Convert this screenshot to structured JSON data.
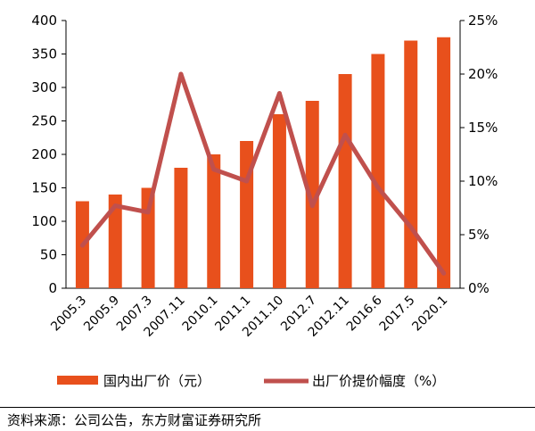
{
  "chart_data": {
    "type": "bar+line",
    "categories": [
      "2005.3",
      "2005.9",
      "2007.3",
      "2007.11",
      "2010.1",
      "2011.1",
      "2011.10",
      "2012.7",
      "2012.11",
      "2016.6",
      "2017.5",
      "2020.1"
    ],
    "series": [
      {
        "name": "国内出厂价（元）",
        "type": "bar",
        "axis": "left",
        "color": "#e8501c",
        "values": [
          130,
          140,
          150,
          180,
          200,
          220,
          260,
          280,
          320,
          350,
          370,
          375
        ]
      },
      {
        "name": "出厂价提价幅度（%）",
        "type": "line",
        "axis": "right",
        "color": "#c0504d",
        "values": [
          4,
          7.7,
          7.1,
          20,
          11.1,
          10,
          18.2,
          7.7,
          14.3,
          9.4,
          5.7,
          1.4
        ]
      }
    ],
    "y_left": {
      "min": 0,
      "max": 400,
      "ticks": [
        "0",
        "50",
        "100",
        "150",
        "200",
        "250",
        "300",
        "350",
        "400"
      ]
    },
    "y_right": {
      "min": 0,
      "max": 25,
      "ticks": [
        "0%",
        "5%",
        "10%",
        "15%",
        "20%",
        "25%"
      ]
    },
    "grid": false,
    "legend_position": "bottom"
  },
  "source": "资料来源：公司公告，东方财富证券研究所"
}
